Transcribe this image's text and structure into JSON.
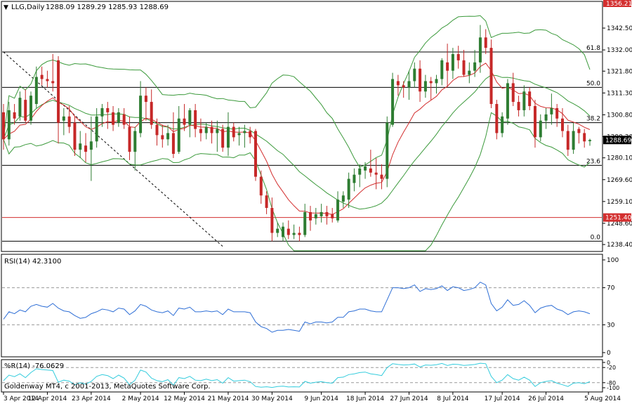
{
  "window": {
    "symbol_title": "LLG,Daily",
    "ohlc": "1288.09 1289.29 1285.93 1288.69",
    "credit": "Goldenway MT4, c 2001-2013, MetaQuotes Software Corp."
  },
  "colors": {
    "up": "#2e7d32",
    "down": "#c62828",
    "bollinger": "#3c9a3c",
    "ma": "#d32f2f",
    "rsi": "#2f6fd6",
    "wpr": "#33ccdd",
    "level_line": "#000000",
    "support_line": "#d32f2f",
    "trend_line": "#000000"
  },
  "chart_data": [
    {
      "type": "candlestick",
      "panel": "price",
      "ylim": [
        1235.4,
        1355.0
      ],
      "yticks": [
        "1342.50",
        "1332.00",
        "1321.80",
        "1311.30",
        "1300.80",
        "1290.30",
        "1280.10",
        "1269.60",
        "1259.10",
        "1248.60",
        "1238.40"
      ],
      "xticks": [
        "3 Apr 2014",
        "12 Apr 2014",
        "23 Apr 2014",
        "2 May 2014",
        "12 May 2014",
        "21 May 2014",
        "30 May 2014",
        "9 Jun 2014",
        "18 Jun 2014",
        "27 Jun 2014",
        "8 Jul 2014",
        "17 Jul 2014",
        "26 Jul 2014",
        "5 Aug 2014"
      ],
      "top_marker_price": "1356.21",
      "current_price": "1288.69",
      "support_price": "1251.40",
      "fib_levels": [
        {
          "label": "61.8",
          "price": 1331.0
        },
        {
          "label": "50.0",
          "price": 1314.0
        },
        {
          "label": "38.2",
          "price": 1297.0
        },
        {
          "label": "23.6",
          "price": 1276.5
        },
        {
          "label": "0.0",
          "price": 1240.0
        }
      ],
      "support_level": 1251.4,
      "trendline": {
        "from": [
          "3 Apr 2014",
          1331.0
        ],
        "to": [
          "29 May 2014",
          1237.5
        ]
      },
      "candles": [
        {
          "d": "3 Apr",
          "o": 1302,
          "h": 1306,
          "l": 1284,
          "c": 1289
        },
        {
          "d": "4 Apr",
          "o": 1289,
          "h": 1307,
          "l": 1286,
          "c": 1303
        },
        {
          "d": "7 Apr",
          "o": 1302,
          "h": 1306,
          "l": 1296,
          "c": 1299
        },
        {
          "d": "8 Apr",
          "o": 1300,
          "h": 1312,
          "l": 1298,
          "c": 1309
        },
        {
          "d": "9 Apr",
          "o": 1308,
          "h": 1313,
          "l": 1297,
          "c": 1298
        },
        {
          "d": "10 Apr",
          "o": 1298,
          "h": 1312,
          "l": 1296,
          "c": 1310
        },
        {
          "d": "11 Apr",
          "o": 1306,
          "h": 1324,
          "l": 1304,
          "c": 1319
        },
        {
          "d": "14 Apr",
          "o": 1320,
          "h": 1324,
          "l": 1315,
          "c": 1318
        },
        {
          "d": "15 Apr",
          "o": 1318,
          "h": 1322,
          "l": 1314,
          "c": 1317
        },
        {
          "d": "16 Apr",
          "o": 1317,
          "h": 1330,
          "l": 1312,
          "c": 1316
        },
        {
          "d": "17 Apr",
          "o": 1327,
          "h": 1329,
          "l": 1287,
          "c": 1297
        },
        {
          "d": "18 Apr",
          "o": 1298,
          "h": 1304,
          "l": 1291,
          "c": 1300
        },
        {
          "d": "21 Apr",
          "o": 1300,
          "h": 1305,
          "l": 1292,
          "c": 1295
        },
        {
          "d": "22 Apr",
          "o": 1297,
          "h": 1300,
          "l": 1281,
          "c": 1284
        },
        {
          "d": "23 Apr",
          "o": 1284,
          "h": 1293,
          "l": 1280,
          "c": 1287
        },
        {
          "d": "24 Apr",
          "o": 1286,
          "h": 1292,
          "l": 1278,
          "c": 1283
        },
        {
          "d": "25 Apr",
          "o": 1284,
          "h": 1300,
          "l": 1269,
          "c": 1288
        },
        {
          "d": "28 Apr",
          "o": 1288,
          "h": 1304,
          "l": 1285,
          "c": 1300
        },
        {
          "d": "29 Apr",
          "o": 1300,
          "h": 1306,
          "l": 1295,
          "c": 1304
        },
        {
          "d": "30 Apr",
          "o": 1304,
          "h": 1307,
          "l": 1294,
          "c": 1302
        },
        {
          "d": "1 May",
          "o": 1302,
          "h": 1305,
          "l": 1293,
          "c": 1296
        },
        {
          "d": "2 May",
          "o": 1297,
          "h": 1304,
          "l": 1295,
          "c": 1302
        },
        {
          "d": "5 May",
          "o": 1301,
          "h": 1304,
          "l": 1294,
          "c": 1296
        },
        {
          "d": "6 May",
          "o": 1295,
          "h": 1300,
          "l": 1279,
          "c": 1283
        },
        {
          "d": "7 May",
          "o": 1283,
          "h": 1295,
          "l": 1274,
          "c": 1293
        },
        {
          "d": "8 May",
          "o": 1292,
          "h": 1317,
          "l": 1290,
          "c": 1310
        },
        {
          "d": "9 May",
          "o": 1310,
          "h": 1314,
          "l": 1298,
          "c": 1307
        },
        {
          "d": "12 May",
          "o": 1307,
          "h": 1313,
          "l": 1294,
          "c": 1296
        },
        {
          "d": "13 May",
          "o": 1296,
          "h": 1299,
          "l": 1286,
          "c": 1291
        },
        {
          "d": "14 May",
          "o": 1291,
          "h": 1296,
          "l": 1285,
          "c": 1289
        },
        {
          "d": "15 May",
          "o": 1289,
          "h": 1296,
          "l": 1286,
          "c": 1292
        },
        {
          "d": "16 May",
          "o": 1292,
          "h": 1302,
          "l": 1280,
          "c": 1282
        },
        {
          "d": "19 May",
          "o": 1283,
          "h": 1305,
          "l": 1282,
          "c": 1299
        },
        {
          "d": "20 May",
          "o": 1299,
          "h": 1306,
          "l": 1293,
          "c": 1296
        },
        {
          "d": "21 May",
          "o": 1296,
          "h": 1304,
          "l": 1290,
          "c": 1303
        },
        {
          "d": "22 May",
          "o": 1303,
          "h": 1306,
          "l": 1290,
          "c": 1294
        },
        {
          "d": "23 May",
          "o": 1294,
          "h": 1299,
          "l": 1288,
          "c": 1292
        },
        {
          "d": "26 May",
          "o": 1292,
          "h": 1297,
          "l": 1289,
          "c": 1295
        },
        {
          "d": "27 May",
          "o": 1295,
          "h": 1298,
          "l": 1287,
          "c": 1292
        },
        {
          "d": "28 May",
          "o": 1292,
          "h": 1298,
          "l": 1283,
          "c": 1294
        },
        {
          "d": "29 May",
          "o": 1294,
          "h": 1296,
          "l": 1283,
          "c": 1285
        },
        {
          "d": "30 May",
          "o": 1285,
          "h": 1302,
          "l": 1281,
          "c": 1295
        },
        {
          "d": "2 Jun",
          "o": 1295,
          "h": 1297,
          "l": 1288,
          "c": 1290
        },
        {
          "d": "3 Jun",
          "o": 1291,
          "h": 1295,
          "l": 1286,
          "c": 1292
        },
        {
          "d": "4 Jun",
          "o": 1292,
          "h": 1296,
          "l": 1285,
          "c": 1293
        },
        {
          "d": "5 Jun",
          "o": 1293,
          "h": 1295,
          "l": 1287,
          "c": 1290
        },
        {
          "d": "6 Jun",
          "o": 1293,
          "h": 1294,
          "l": 1269,
          "c": 1271
        },
        {
          "d": "9 Jun",
          "o": 1271,
          "h": 1274,
          "l": 1258,
          "c": 1262
        },
        {
          "d": "10 Jun",
          "o": 1262,
          "h": 1264,
          "l": 1253,
          "c": 1256
        },
        {
          "d": "11 Jun",
          "o": 1256,
          "h": 1261,
          "l": 1240,
          "c": 1244
        },
        {
          "d": "12 Jun",
          "o": 1244,
          "h": 1249,
          "l": 1242,
          "c": 1246
        },
        {
          "d": "13 Jun",
          "o": 1242,
          "h": 1249,
          "l": 1240,
          "c": 1247
        },
        {
          "d": "16 Jun",
          "o": 1246,
          "h": 1250,
          "l": 1241,
          "c": 1243
        },
        {
          "d": "17 Jun",
          "o": 1243,
          "h": 1248,
          "l": 1241,
          "c": 1244
        },
        {
          "d": "18 Jun",
          "o": 1244,
          "h": 1247,
          "l": 1240,
          "c": 1243
        },
        {
          "d": "19 Jun",
          "o": 1243,
          "h": 1258,
          "l": 1242,
          "c": 1254
        },
        {
          "d": "20 Jun",
          "o": 1254,
          "h": 1257,
          "l": 1245,
          "c": 1250
        },
        {
          "d": "23 Jun",
          "o": 1251,
          "h": 1256,
          "l": 1248,
          "c": 1253
        },
        {
          "d": "24 Jun",
          "o": 1252,
          "h": 1258,
          "l": 1249,
          "c": 1254
        },
        {
          "d": "25 Jun",
          "o": 1254,
          "h": 1257,
          "l": 1248,
          "c": 1252
        },
        {
          "d": "26 Jun",
          "o": 1253,
          "h": 1256,
          "l": 1249,
          "c": 1251
        },
        {
          "d": "27 Jun",
          "o": 1250,
          "h": 1264,
          "l": 1249,
          "c": 1260
        },
        {
          "d": "30 Jun",
          "o": 1259,
          "h": 1264,
          "l": 1256,
          "c": 1262
        },
        {
          "d": "1 Jul",
          "o": 1260,
          "h": 1273,
          "l": 1256,
          "c": 1270
        },
        {
          "d": "2 Jul",
          "o": 1268,
          "h": 1275,
          "l": 1264,
          "c": 1272
        },
        {
          "d": "3 Jul",
          "o": 1272,
          "h": 1277,
          "l": 1266,
          "c": 1275
        },
        {
          "d": "4 Jul",
          "o": 1274,
          "h": 1278,
          "l": 1270,
          "c": 1276
        },
        {
          "d": "7 Jul",
          "o": 1275,
          "h": 1284,
          "l": 1271,
          "c": 1273
        },
        {
          "d": "8 Jul",
          "o": 1273,
          "h": 1280,
          "l": 1265,
          "c": 1272
        },
        {
          "d": "9 Jul",
          "o": 1272,
          "h": 1277,
          "l": 1265,
          "c": 1270
        },
        {
          "d": "10 Jul",
          "o": 1270,
          "h": 1300,
          "l": 1266,
          "c": 1297
        },
        {
          "d": "11 Jul",
          "o": 1296,
          "h": 1321,
          "l": 1295,
          "c": 1318
        },
        {
          "d": "14 Jul",
          "o": 1317,
          "h": 1320,
          "l": 1310,
          "c": 1315
        },
        {
          "d": "15 Jul",
          "o": 1315,
          "h": 1317,
          "l": 1309,
          "c": 1314
        },
        {
          "d": "16 Jul",
          "o": 1314,
          "h": 1322,
          "l": 1308,
          "c": 1317
        },
        {
          "d": "17 Jul",
          "o": 1317,
          "h": 1326,
          "l": 1314,
          "c": 1323
        },
        {
          "d": "18 Jul",
          "o": 1323,
          "h": 1327,
          "l": 1307,
          "c": 1312
        },
        {
          "d": "21 Jul",
          "o": 1312,
          "h": 1320,
          "l": 1309,
          "c": 1317
        },
        {
          "d": "22 Jul",
          "o": 1317,
          "h": 1319,
          "l": 1308,
          "c": 1316
        },
        {
          "d": "23 Jul",
          "o": 1316,
          "h": 1320,
          "l": 1311,
          "c": 1318
        },
        {
          "d": "24 Jul",
          "o": 1318,
          "h": 1328,
          "l": 1315,
          "c": 1327
        },
        {
          "d": "25 Jul",
          "o": 1326,
          "h": 1335,
          "l": 1314,
          "c": 1322
        },
        {
          "d": "28 Jul",
          "o": 1322,
          "h": 1333,
          "l": 1318,
          "c": 1330
        },
        {
          "d": "29 Jul",
          "o": 1330,
          "h": 1334,
          "l": 1323,
          "c": 1327
        },
        {
          "d": "30 Jul",
          "o": 1327,
          "h": 1332,
          "l": 1319,
          "c": 1320
        },
        {
          "d": "31 Jul",
          "o": 1320,
          "h": 1326,
          "l": 1316,
          "c": 1322
        },
        {
          "d": "1 Aug",
          "o": 1322,
          "h": 1332,
          "l": 1319,
          "c": 1326
        },
        {
          "d": "4 Aug",
          "o": 1326,
          "h": 1344,
          "l": 1321,
          "c": 1338
        },
        {
          "d": "5 Aug",
          "o": 1338,
          "h": 1342,
          "l": 1330,
          "c": 1333
        },
        {
          "d": "6 Aug",
          "o": 1333,
          "h": 1337,
          "l": 1304,
          "c": 1306
        },
        {
          "d": "7 Aug",
          "o": 1306,
          "h": 1308,
          "l": 1289,
          "c": 1292
        },
        {
          "d": "8 Aug",
          "o": 1292,
          "h": 1302,
          "l": 1290,
          "c": 1300
        },
        {
          "d": "11 Aug",
          "o": 1299,
          "h": 1318,
          "l": 1296,
          "c": 1316
        },
        {
          "d": "12 Aug",
          "o": 1316,
          "h": 1321,
          "l": 1305,
          "c": 1307
        },
        {
          "d": "13 Aug",
          "o": 1307,
          "h": 1310,
          "l": 1300,
          "c": 1303
        },
        {
          "d": "14 Aug",
          "o": 1303,
          "h": 1315,
          "l": 1300,
          "c": 1312
        },
        {
          "d": "15 Aug",
          "o": 1312,
          "h": 1314,
          "l": 1303,
          "c": 1305
        },
        {
          "d": "18 Aug",
          "o": 1305,
          "h": 1308,
          "l": 1285,
          "c": 1290
        },
        {
          "d": "19 Aug",
          "o": 1290,
          "h": 1301,
          "l": 1288,
          "c": 1298
        },
        {
          "d": "20 Aug",
          "o": 1298,
          "h": 1304,
          "l": 1294,
          "c": 1301
        },
        {
          "d": "21 Aug",
          "o": 1301,
          "h": 1311,
          "l": 1296,
          "c": 1304
        },
        {
          "d": "22 Aug",
          "o": 1304,
          "h": 1306,
          "l": 1295,
          "c": 1299
        },
        {
          "d": "25 Aug",
          "o": 1299,
          "h": 1304,
          "l": 1290,
          "c": 1293
        },
        {
          "d": "26 Aug",
          "o": 1293,
          "h": 1296,
          "l": 1281,
          "c": 1284
        },
        {
          "d": "27 Aug",
          "o": 1284,
          "h": 1297,
          "l": 1282,
          "c": 1293
        },
        {
          "d": "28 Aug",
          "o": 1294,
          "h": 1295,
          "l": 1287,
          "c": 1292
        },
        {
          "d": "29 Aug",
          "o": 1292,
          "h": 1294,
          "l": 1285,
          "c": 1288
        },
        {
          "d": "1 Sep",
          "o": 1288.09,
          "h": 1289.29,
          "l": 1285.93,
          "c": 1288.69
        }
      ]
    },
    {
      "type": "line",
      "panel": "rsi",
      "title": "RSI(14) 42.3100",
      "ylim": [
        0,
        100
      ],
      "yticks": [
        "100",
        "70",
        "30",
        "0"
      ],
      "levels": [
        70,
        30
      ],
      "values": [
        36,
        44,
        42,
        46,
        44,
        50,
        52,
        50,
        49,
        53,
        48,
        45,
        44,
        40,
        37,
        38,
        42,
        44,
        47,
        46,
        44,
        48,
        47,
        41,
        45,
        52,
        50,
        46,
        44,
        43,
        45,
        40,
        48,
        47,
        49,
        44,
        44,
        45,
        44,
        45,
        41,
        47,
        44,
        44,
        44,
        43,
        33,
        28,
        26,
        22,
        24,
        24,
        25,
        24,
        23,
        33,
        31,
        33,
        33,
        32,
        33,
        38,
        38,
        44,
        45,
        47,
        47,
        45,
        44,
        44,
        57,
        70,
        70,
        69,
        70,
        73,
        66,
        69,
        68,
        69,
        72,
        67,
        71,
        70,
        67,
        68,
        70,
        76,
        73,
        53,
        45,
        49,
        57,
        51,
        52,
        56,
        51,
        43,
        48,
        50,
        51,
        47,
        45,
        41,
        44,
        45,
        44,
        42
      ]
    },
    {
      "type": "line",
      "panel": "wpr",
      "title": "%R(14) -76.0629",
      "ylim": [
        -100,
        0
      ],
      "yticks": [
        "0",
        "-20",
        "-80",
        "-100"
      ],
      "levels": [
        -20,
        -80
      ],
      "values": [
        -72,
        -50,
        -56,
        -45,
        -60,
        -40,
        -25,
        -28,
        -30,
        -32,
        -78,
        -70,
        -74,
        -88,
        -80,
        -86,
        -75,
        -55,
        -48,
        -52,
        -64,
        -50,
        -62,
        -88,
        -70,
        -30,
        -38,
        -62,
        -72,
        -76,
        -68,
        -90,
        -60,
        -64,
        -55,
        -70,
        -72,
        -66,
        -72,
        -68,
        -82,
        -60,
        -74,
        -72,
        -70,
        -76,
        -95,
        -98,
        -96,
        -99,
        -95,
        -94,
        -97,
        -96,
        -97,
        -75,
        -82,
        -78,
        -76,
        -80,
        -82,
        -60,
        -58,
        -48,
        -45,
        -40,
        -38,
        -45,
        -48,
        -52,
        -20,
        -5,
        -8,
        -10,
        -9,
        -6,
        -18,
        -10,
        -11,
        -9,
        -4,
        -12,
        -7,
        -8,
        -12,
        -10,
        -8,
        -3,
        -5,
        -55,
        -80,
        -70,
        -48,
        -64,
        -70,
        -58,
        -70,
        -95,
        -80,
        -75,
        -72,
        -82,
        -88,
        -95,
        -82,
        -80,
        -84,
        -76
      ]
    }
  ]
}
